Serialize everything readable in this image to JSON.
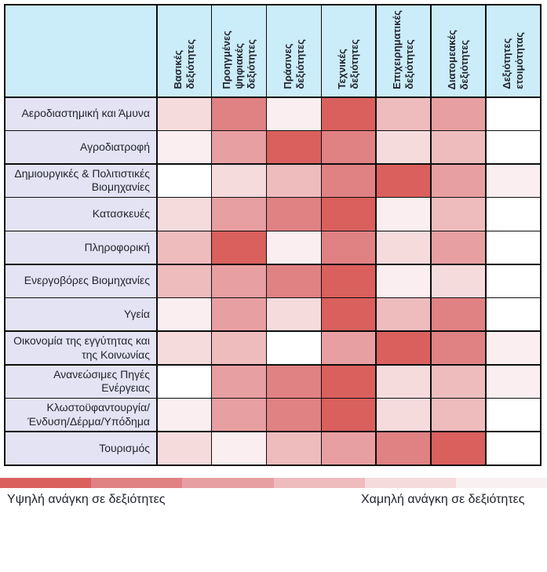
{
  "chart_data": {
    "type": "heatmap",
    "title": "",
    "columns": [
      "Βασικές\nδεξιότητες",
      "Προηγμένες\nψηφιακές\nδεξιότητες",
      "Πράσινες\nδεξιότητες",
      "Τεχνικές\nδεξιότητες",
      "Επιχειρηματικές\nδεξιότητες",
      "Διατομεακές\nδεξιότητες",
      "Δεξιότητες\nετοιμότητας"
    ],
    "rows": [
      "Αεροδιαστημική και Άμυνα",
      "Αγροδιατροφή",
      "Δημιουργικές & Πολιτιστικές\nΒιομηχανίες",
      "Κατασκευές",
      "Πληροφορική",
      "Ενεργοβόρες Βιομηχανίες",
      "Υγεία",
      "Οικονομία της εγγύτητας και\nτης Κοινωνίας",
      "Ανανεώσιμες Πηγές\nΕνέργειας",
      "Κλωστοϋφαντουργία/\nΈνδυση/Δέρμα/Υπόδημα",
      "Τουρισμός"
    ],
    "value_scale": "ordinal need-for-skills level 0 (lowest/none) to 6 (highest)",
    "values": [
      [
        2,
        5,
        1,
        6,
        3,
        4,
        0
      ],
      [
        1,
        4,
        6,
        5,
        2,
        3,
        0
      ],
      [
        0,
        2,
        3,
        5,
        6,
        4,
        1
      ],
      [
        2,
        4,
        5,
        6,
        1,
        3,
        0
      ],
      [
        3,
        6,
        1,
        5,
        2,
        4,
        0
      ],
      [
        3,
        4,
        5,
        6,
        1,
        2,
        0
      ],
      [
        1,
        4,
        2,
        6,
        3,
        5,
        0
      ],
      [
        2,
        3,
        0,
        4,
        6,
        5,
        1
      ],
      [
        0,
        4,
        5,
        6,
        2,
        3,
        1
      ],
      [
        1,
        4,
        5,
        6,
        2,
        3,
        0
      ],
      [
        2,
        1,
        3,
        4,
        5,
        6,
        0
      ]
    ],
    "palette": [
      "#ffffff",
      "#fbeef0",
      "#f6dbdd",
      "#efbcbe",
      "#e89fa1",
      "#e08183",
      "#d9605d"
    ],
    "header_bg": "#cbecf9",
    "row_label_bg": "#e3e3f3",
    "legend_position": "bottom"
  },
  "legend": {
    "colors": [
      "#d9605d",
      "#e08183",
      "#e89fa1",
      "#efbcbe",
      "#f6dbdd",
      "#f9f1f1"
    ],
    "high_label": "Υψηλή ανάγκη σε δεξιότητες",
    "low_label": "Χαμηλή ανάγκη σε δεξιότητες"
  }
}
